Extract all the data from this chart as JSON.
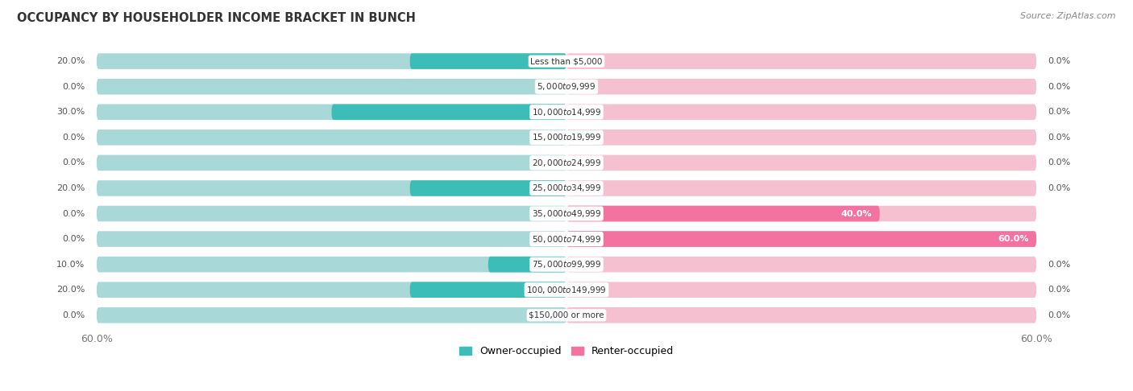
{
  "title": "OCCUPANCY BY HOUSEHOLDER INCOME BRACKET IN BUNCH",
  "source": "Source: ZipAtlas.com",
  "categories": [
    "Less than $5,000",
    "$5,000 to $9,999",
    "$10,000 to $14,999",
    "$15,000 to $19,999",
    "$20,000 to $24,999",
    "$25,000 to $34,999",
    "$35,000 to $49,999",
    "$50,000 to $74,999",
    "$75,000 to $99,999",
    "$100,000 to $149,999",
    "$150,000 or more"
  ],
  "owner_pct": [
    20.0,
    0.0,
    30.0,
    0.0,
    0.0,
    20.0,
    0.0,
    0.0,
    10.0,
    20.0,
    0.0
  ],
  "renter_pct": [
    0.0,
    0.0,
    0.0,
    0.0,
    0.0,
    0.0,
    40.0,
    60.0,
    0.0,
    0.0,
    0.0
  ],
  "owner_color": "#3DBDB8",
  "renter_color": "#F472A0",
  "owner_color_light": "#A8D8D8",
  "renter_color_light": "#F5C0D0",
  "row_bg_color": "#EBEBEB",
  "axis_max": 60.0,
  "bar_height": 0.62,
  "title_color": "#333333",
  "label_fontsize": 8.0,
  "value_fontsize": 8.0,
  "cat_fontsize": 7.5
}
